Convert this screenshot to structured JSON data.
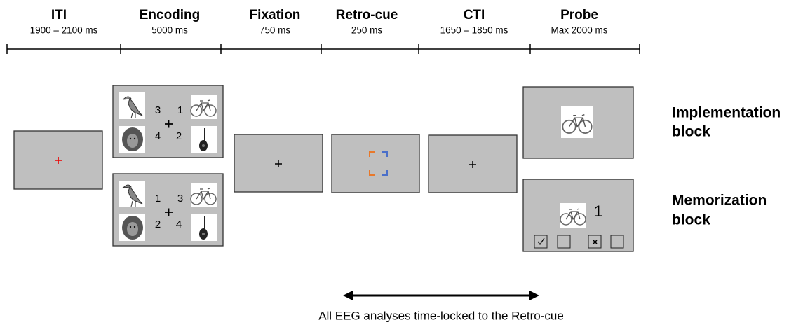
{
  "phases": [
    {
      "name": "ITI",
      "duration": "1900 – 2100 ms"
    },
    {
      "name": "Encoding",
      "duration": "5000 ms"
    },
    {
      "name": "Fixation",
      "duration": "750 ms"
    },
    {
      "name": "Retro-cue",
      "duration": "250 ms"
    },
    {
      "name": "CTI",
      "duration": "1650 – 1850 ms"
    },
    {
      "name": "Probe",
      "duration": "Max 2000 ms"
    }
  ],
  "encoding": {
    "implementation_numbers": [
      "3",
      "1",
      "4",
      "2"
    ],
    "memorization_numbers": [
      "1",
      "3",
      "2",
      "4"
    ]
  },
  "probe": {
    "memorization_number": "1"
  },
  "blocks": [
    {
      "lines": [
        "Implementation",
        "block"
      ]
    },
    {
      "lines": [
        "Memorization",
        "block"
      ]
    }
  ],
  "caption": "All EEG analyses time-locked to the Retro-cue"
}
